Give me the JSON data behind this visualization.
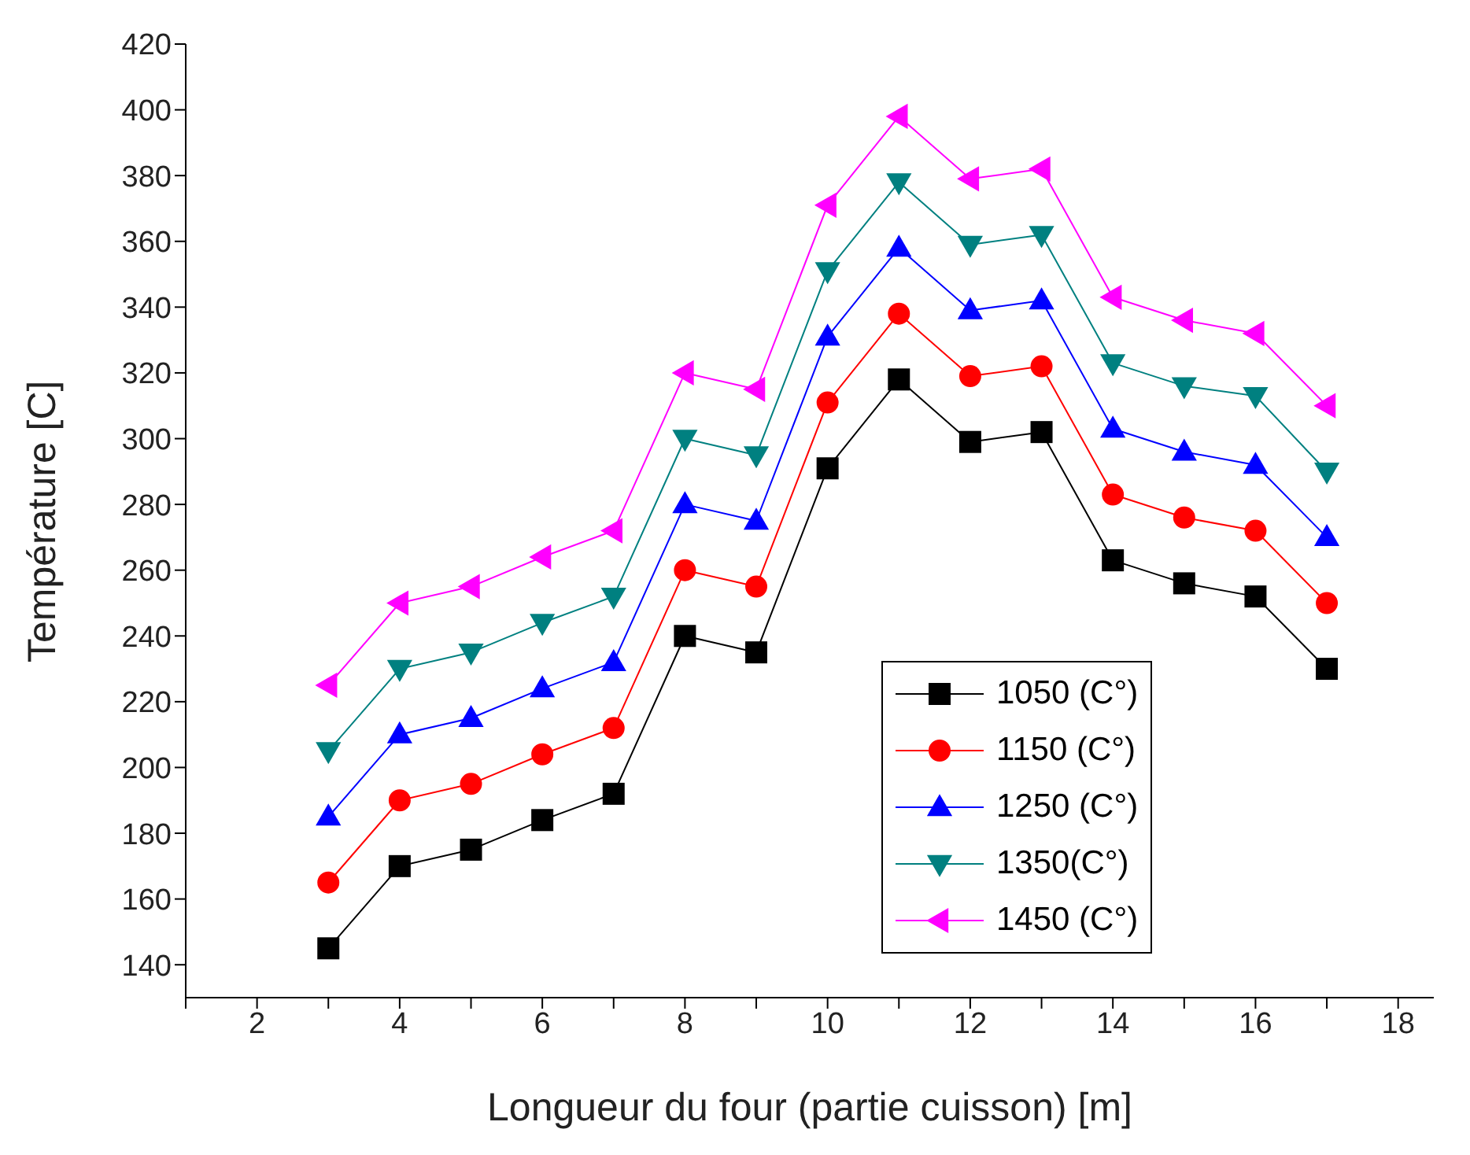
{
  "chart_data": {
    "type": "line",
    "xlabel": "Longueur du four (partie cuisson)  [m]",
    "ylabel": "Température [C]",
    "x": [
      3,
      4,
      5,
      6,
      7,
      8,
      9,
      10,
      11,
      12,
      13,
      14,
      15,
      16,
      17
    ],
    "xlim": [
      1,
      18.5
    ],
    "xticks": [
      {
        "value": 1,
        "label": null
      },
      2,
      {
        "value": 3,
        "label": null
      },
      4,
      {
        "value": 5,
        "label": null
      },
      6,
      {
        "value": 7,
        "label": null
      },
      8,
      {
        "value": 9,
        "label": null
      },
      10,
      {
        "value": 11,
        "label": null
      },
      12,
      {
        "value": 13,
        "label": null
      },
      14,
      {
        "value": 15,
        "label": null
      },
      16,
      {
        "value": 17,
        "label": null
      },
      18
    ],
    "ylim": [
      130,
      420
    ],
    "yticks": [
      140,
      160,
      180,
      200,
      220,
      240,
      260,
      280,
      300,
      320,
      340,
      360,
      380,
      400,
      420
    ],
    "grid": false,
    "legend": "bottom right",
    "line_style": "solid",
    "series": [
      {
        "name": "1050 (C°)",
        "color": "#000000",
        "marker": "square",
        "values": [
          145,
          170,
          175,
          184,
          192,
          240,
          235,
          291,
          318,
          299,
          302,
          263,
          256,
          252,
          230
        ]
      },
      {
        "name": "1150 (C°)",
        "color": "#ff0000",
        "marker": "circle",
        "values": [
          165,
          190,
          195,
          204,
          212,
          260,
          255,
          311,
          338,
          319,
          322,
          283,
          276,
          272,
          250
        ]
      },
      {
        "name": "1250 (C°)",
        "color": "#0000ff",
        "marker": "triangle",
        "values": [
          185,
          210,
          215,
          224,
          232,
          280,
          275,
          331,
          358,
          339,
          342,
          303,
          296,
          292,
          270
        ]
      },
      {
        "name": "1350(C°)",
        "color": "#008080",
        "marker": "triangle_down",
        "values": [
          205,
          230,
          235,
          244,
          252,
          300,
          295,
          351,
          378,
          359,
          362,
          323,
          316,
          313,
          290
        ]
      },
      {
        "name": "1450 (C°)",
        "color": "#ff00ff",
        "marker": "triangle_left",
        "values": [
          225,
          250,
          255,
          264,
          272,
          320,
          315,
          371,
          398,
          379,
          382,
          343,
          336,
          332,
          310
        ]
      }
    ]
  }
}
